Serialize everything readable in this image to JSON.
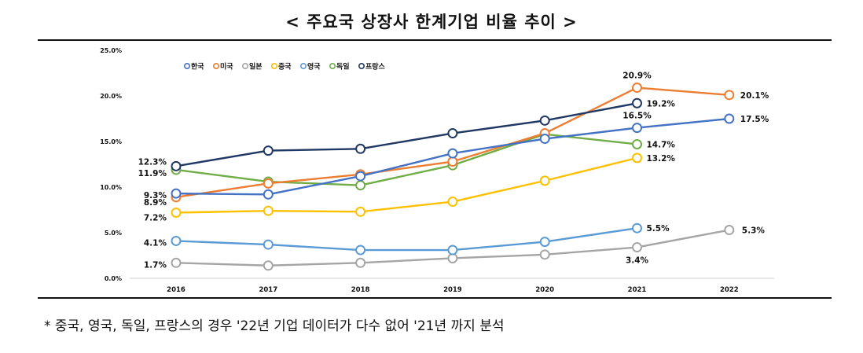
{
  "title": "< 주요국 상장사 한계기업 비율 추이 >",
  "footnote": "* 중국, 영국, 독일, 프랑스의 경우 '22년 기업 데이터가 다수 없어 '21년 까지 분석",
  "chart_data": {
    "type": "line",
    "x": [
      "2016",
      "2017",
      "2018",
      "2019",
      "2020",
      "2021",
      "2022"
    ],
    "ylim": [
      0,
      25
    ],
    "yticks": [
      "0.0%",
      "5.0%",
      "10.0%",
      "15.0%",
      "20.0%",
      "25.0%"
    ],
    "grid": false,
    "legend_position": "top-left",
    "series": [
      {
        "name": "한국",
        "color": "#4472c4",
        "values": [
          9.3,
          9.2,
          11.2,
          13.7,
          15.3,
          16.5,
          17.5
        ],
        "labels": [
          {
            "i": 0,
            "text": "9.3%"
          },
          {
            "i": 5,
            "text": "16.5%"
          },
          {
            "i": 6,
            "text": "17.5%"
          }
        ]
      },
      {
        "name": "미국",
        "color": "#ed7d31",
        "values": [
          8.9,
          10.4,
          11.4,
          12.8,
          15.9,
          20.9,
          20.1
        ],
        "labels": [
          {
            "i": 0,
            "text": "8.9%"
          },
          {
            "i": 5,
            "text": "20.9%"
          },
          {
            "i": 6,
            "text": "20.1%"
          }
        ]
      },
      {
        "name": "일본",
        "color": "#a5a5a5",
        "values": [
          1.7,
          1.4,
          1.7,
          2.2,
          2.6,
          3.4,
          5.3
        ],
        "labels": [
          {
            "i": 0,
            "text": "1.7%"
          },
          {
            "i": 5,
            "text": "3.4%"
          },
          {
            "i": 6,
            "text": "5.3%"
          }
        ]
      },
      {
        "name": "중국",
        "color": "#ffc000",
        "values": [
          7.2,
          7.4,
          7.3,
          8.4,
          10.7,
          13.2,
          null
        ],
        "labels": [
          {
            "i": 0,
            "text": "7.2%"
          },
          {
            "i": 5,
            "text": "13.2%"
          }
        ]
      },
      {
        "name": "영국",
        "color": "#5b9bd5",
        "values": [
          4.1,
          3.7,
          3.1,
          3.1,
          4.0,
          5.5,
          null
        ],
        "labels": [
          {
            "i": 0,
            "text": "4.1%"
          },
          {
            "i": 5,
            "text": "5.5%"
          }
        ]
      },
      {
        "name": "독일",
        "color": "#70ad47",
        "values": [
          11.9,
          10.6,
          10.2,
          12.4,
          15.8,
          14.7,
          null
        ],
        "labels": [
          {
            "i": 0,
            "text": "11.9%"
          },
          {
            "i": 5,
            "text": "14.7%"
          }
        ]
      },
      {
        "name": "프랑스",
        "color": "#203864",
        "values": [
          12.3,
          14.0,
          14.2,
          15.9,
          17.3,
          19.2,
          null
        ],
        "labels": [
          {
            "i": 0,
            "text": "12.3%"
          },
          {
            "i": 5,
            "text": "19.2%"
          }
        ]
      }
    ]
  }
}
